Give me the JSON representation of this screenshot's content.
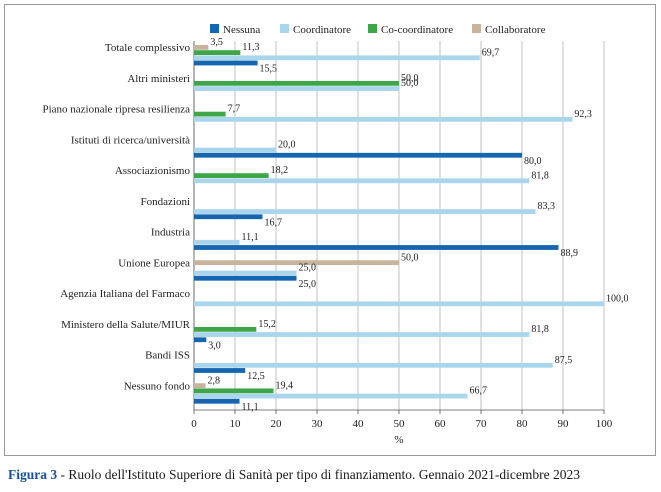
{
  "chart_data": {
    "type": "bar",
    "orientation": "horizontal",
    "categories": [
      "Totale complessivo",
      "Altri ministeri",
      "Piano nazionale ripresa resilienza",
      "Istituti di ricerca/università",
      "Associazionismo",
      "Fondazioni",
      "Industria",
      "Unione Europea",
      "Agenzia Italiana del Farmaco",
      "Ministero della Salute/MIUR",
      "Bandi ISS",
      "Nessuno fondo"
    ],
    "series": [
      {
        "name": "Nessuna",
        "color": "#1565b0",
        "values": [
          15.5,
          null,
          null,
          80.0,
          null,
          16.7,
          88.9,
          25.0,
          null,
          3.0,
          12.5,
          11.1
        ],
        "labels": [
          "15,5",
          "",
          "",
          "80,0",
          "",
          "16,7",
          "88,9",
          "25,0",
          "",
          "3,0",
          "12,5",
          "11,1"
        ]
      },
      {
        "name": "Coordinatore",
        "color": "#a9d6ec",
        "values": [
          69.7,
          50.0,
          92.3,
          20.0,
          81.8,
          83.3,
          11.1,
          25.0,
          100.0,
          81.8,
          87.5,
          66.7
        ],
        "labels": [
          "69,7",
          "50,0",
          "92,3",
          "20,0",
          "81,8",
          "83,3",
          "11,1",
          "25,0",
          "100,0",
          "81,8",
          "87,5",
          "66,7"
        ]
      },
      {
        "name": "Co-coordinatore",
        "color": "#3fa648",
        "values": [
          11.3,
          50.0,
          7.7,
          null,
          18.2,
          null,
          null,
          null,
          null,
          15.2,
          null,
          19.4
        ],
        "labels": [
          "11,3",
          "50,0",
          "7,7",
          "",
          "18,2",
          "",
          "",
          "",
          "",
          "15,2",
          "",
          "19,4"
        ]
      },
      {
        "name": "Collaboratore",
        "color": "#c8b39c",
        "values": [
          3.5,
          null,
          null,
          null,
          null,
          null,
          null,
          50.0,
          null,
          null,
          null,
          2.8
        ],
        "labels": [
          "3,5",
          "",
          "",
          "",
          "",
          "",
          "",
          "50,0",
          "",
          "",
          "",
          "2,8"
        ]
      }
    ],
    "xlim": [
      0,
      100
    ],
    "xticks": [
      "0",
      "10",
      "20",
      "30",
      "40",
      "50",
      "60",
      "70",
      "80",
      "90",
      "100"
    ],
    "xlabel": "%",
    "grid": true,
    "legend": "top"
  },
  "caption": {
    "figure": "Figura 3",
    "text": " - Ruolo dell'Istituto Superiore di Sanità per tipo di finanziamento. Gennaio 2021-dicembre 2023"
  }
}
